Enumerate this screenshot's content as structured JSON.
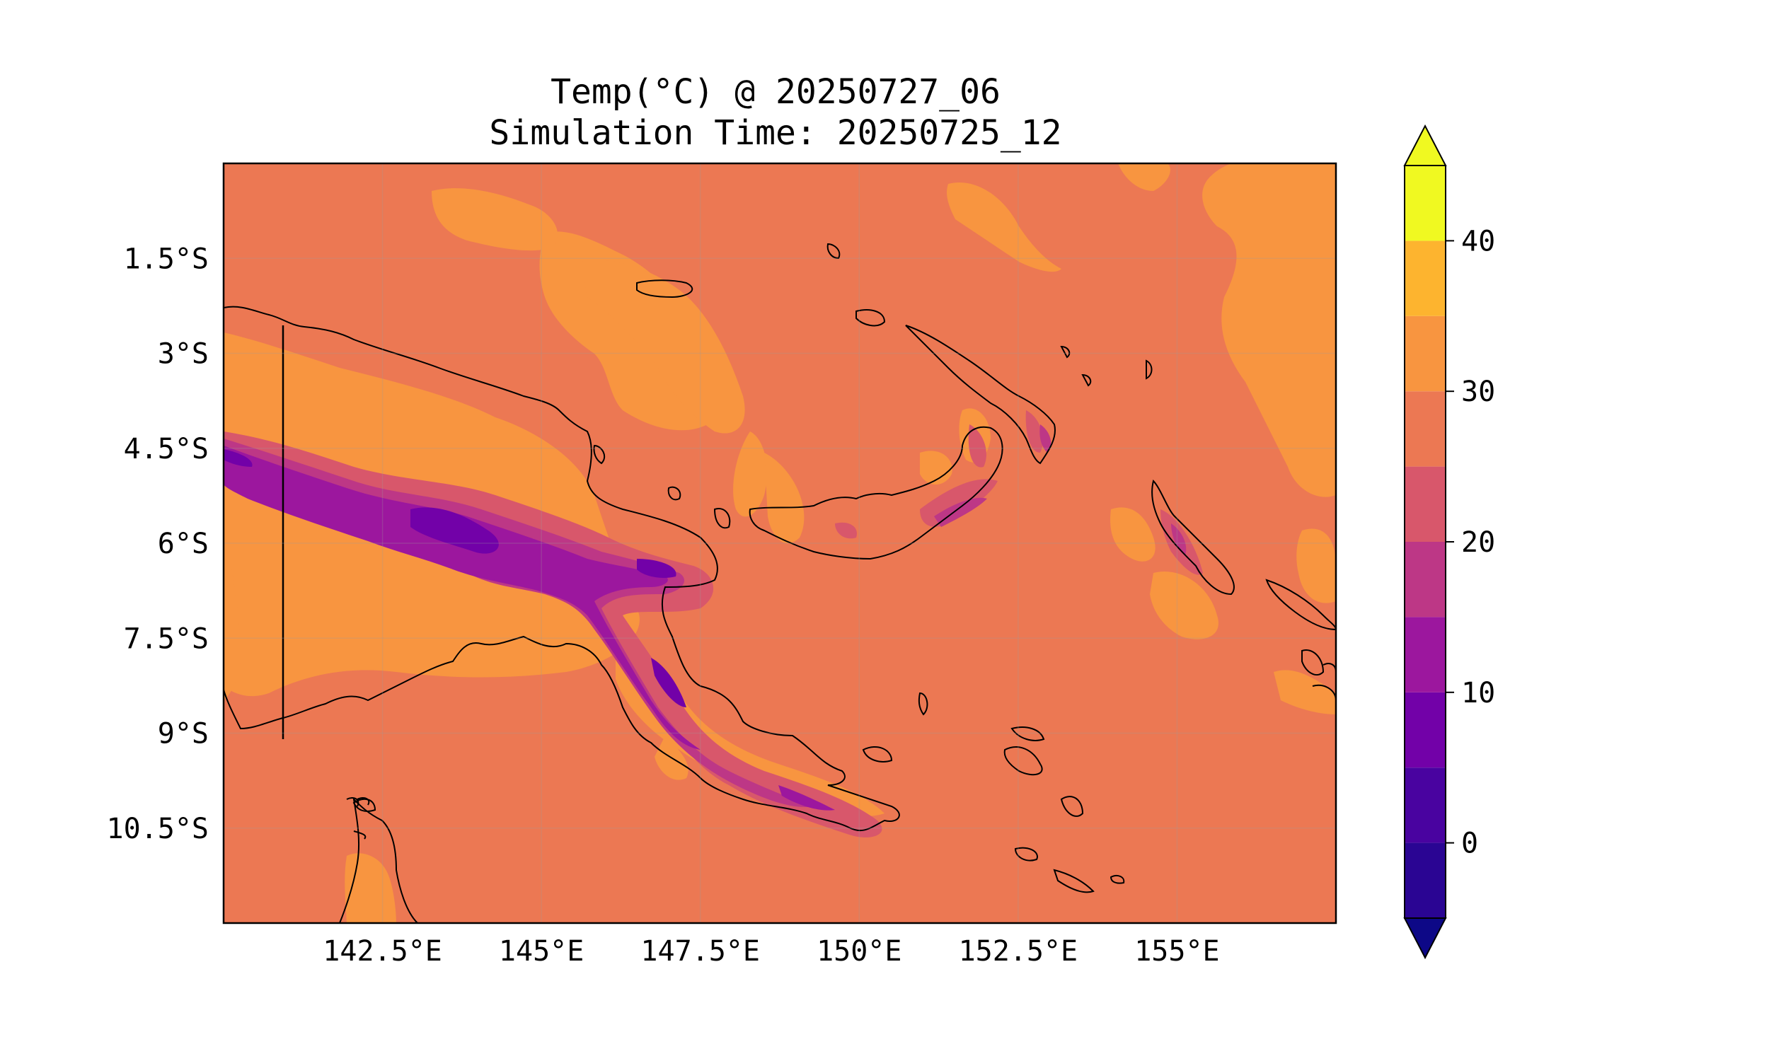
{
  "title": {
    "line1": "Temp(°C) @ 20250727_06",
    "line2": "Simulation Time: 20250725_12"
  },
  "map": {
    "variable": "Temp",
    "units": "°C",
    "valid_time": "20250727_06",
    "simulation_time": "20250725_12",
    "lon_range": [
      140.0,
      157.5
    ],
    "lat_range": [
      -12.0,
      0.0
    ],
    "lat_ticks": [
      "1.5°S",
      "3°S",
      "4.5°S",
      "6°S",
      "7.5°S",
      "9°S",
      "10.5°S"
    ],
    "lat_tick_values": [
      -1.5,
      -3.0,
      -4.5,
      -6.0,
      -7.5,
      -9.0,
      -10.5
    ],
    "lon_ticks": [
      "142.5°E",
      "145°E",
      "147.5°E",
      "150°E",
      "152.5°E",
      "155°E"
    ],
    "lon_tick_values": [
      142.5,
      145.0,
      147.5,
      150.0,
      152.5,
      155.0
    ],
    "gridlines": true,
    "background_value_range": "25–30",
    "colors": {
      "below_min": "#0d0887",
      "bin_m5_0": "#2a0593",
      "bin_0_5": "#4903a0",
      "bin_5_10": "#7201a8",
      "bin_10_15": "#9c179e",
      "bin_15_20": "#bd3786",
      "bin_20_25": "#d8576b",
      "bin_25_30": "#ec7853",
      "bin_30_35": "#f89540",
      "bin_35_40": "#fdb42f",
      "bin_40_45": "#f0f921",
      "above_max": "#f0f921"
    }
  },
  "colorbar": {
    "tick_labels": [
      "0",
      "10",
      "20",
      "30",
      "40"
    ],
    "tick_values": [
      0,
      10,
      20,
      30,
      40
    ],
    "range": [
      -5,
      45
    ],
    "extend": "both",
    "levels": [
      -5,
      0,
      5,
      10,
      15,
      20,
      25,
      30,
      35,
      40,
      45
    ]
  }
}
